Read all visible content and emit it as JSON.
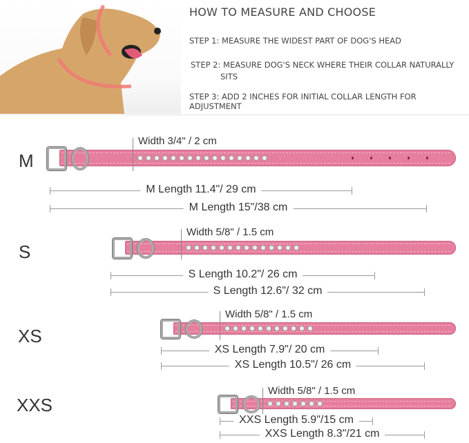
{
  "header": {
    "title": "HOW TO MEASURE AND CHOOSE",
    "steps": [
      "STEP 1: MEASURE THE WIDEST PART OF DOG'S HEAD",
      "STEP 2: MEASURE DOG'S NECK WHERE THEIR COLLAR NATURALLY",
      "SITS",
      "STEP 3: ADD 2 INCHES FOR INITIAL COLLAR LENGTH FOR ADJUSTMENT"
    ]
  },
  "colors": {
    "collar": "#e67e9d",
    "arrow": "#f07a74"
  },
  "sizes": [
    {
      "name": "M",
      "width": "Width 3/4\" / 2 cm",
      "length_short": "M Length 11.4\"/ 29 cm",
      "length_long": "M Length 15\"/38 cm"
    },
    {
      "name": "S",
      "width": "Width 5/8\" / 1.5 cm",
      "length_short": "S  Length 10.2\"/ 26 cm",
      "length_long": "S  Length 12.6\"/ 32 cm"
    },
    {
      "name": "XS",
      "width": "Width 5/8\" / 1.5 cm",
      "length_short": "XS  Length 7.9\"/ 20 cm",
      "length_long": "XS  Length 10.5\"/ 26 cm"
    },
    {
      "name": "XXS",
      "width": "Width 5/8\" / 1.5 cm",
      "length_short": "XXS Length 5.9\"/15 cm",
      "length_long": "XXS Length 8.3\"/21 cm"
    }
  ]
}
